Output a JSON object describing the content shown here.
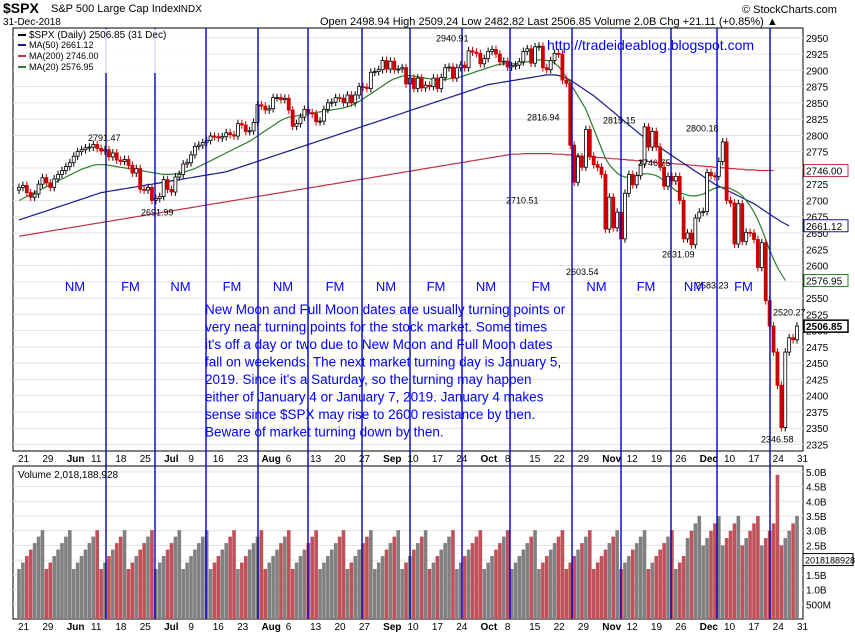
{
  "header": {
    "symbol": "$SPX",
    "name": "S&P 500 Large Cap Index",
    "exchange": "INDX",
    "date": "31-Dec-2018",
    "brand": "© StockCharts.com",
    "ohlc_line": "Open 2498.94  High 2509.24  Low 2482.82  Last 2506.85  Volume 2.0B  Chg +21.11 (+0.85%) ▲"
  },
  "legend": {
    "price": "$SPX (Daily) 2506.85 (31 Dec)",
    "ma50": "MA(50) 2661.12",
    "ma200": "MA(200) 2746.00",
    "ma20": "MA(20) 2576.95"
  },
  "blog_url": "http://tradeideablog.blogspot.com",
  "moon_labels": [
    "NM",
    "FM",
    "NM",
    "FM",
    "NM",
    "FM",
    "NM",
    "FM",
    "NM",
    "FM",
    "NM",
    "FM",
    "NM",
    "FM"
  ],
  "note_lines": [
    "New Moon and Full Moon dates are usually turning points or",
    "very near turning points for the stock market. Some times",
    "it's off a day or two due to New Moon and Full Moon dates",
    "fall on weekends. The next market turning day is January 5,",
    "2019. Since it's a Saturday, so the turning may happen",
    "either of January 4 or January 7, 2019. January 4 makes",
    "sense since $SPX may rise to 2600 resistance by then.",
    "Beware of market turning down by then."
  ],
  "volume_label": "Volume 2,018,188,928",
  "colors": {
    "up": "#000000",
    "down": "#cc0000",
    "volume_up": "#808080",
    "volume_down": "#c0505a",
    "ma20": "#2e7d2e",
    "ma50": "#1a1a8c",
    "ma200": "#c0304a",
    "moon_line": "#0000cc",
    "note_text": "#0000ff"
  },
  "chart_data": {
    "type": "candlestick",
    "price_ylim": [
      2315,
      2965
    ],
    "price_ticks": [
      2950,
      2925,
      2900,
      2875,
      2850,
      2825,
      2800,
      2775,
      2750,
      2725,
      2700,
      2675,
      2650,
      2625,
      2600,
      2575,
      2550,
      2525,
      2500,
      2475,
      2450,
      2425,
      2400,
      2375,
      2350,
      2325
    ],
    "x_ticks": [
      "21",
      "29",
      "Jun",
      "11",
      "18",
      "25",
      "Jul",
      "9",
      "16",
      "23",
      "Aug",
      "6",
      "13",
      "20",
      "27",
      "Sep",
      "10",
      "17",
      "24",
      "Oct",
      "8",
      "15",
      "22",
      "29",
      "Nov",
      "12",
      "19",
      "26",
      "Dec",
      "10",
      "17",
      "24",
      "31"
    ],
    "x_ticks_bold": [
      "Jun",
      "Jul",
      "Aug",
      "Sep",
      "Oct",
      "Nov",
      "Dec"
    ],
    "annotations": [
      {
        "label": "2791.47",
        "value": 2791.47
      },
      {
        "label": "2691.99",
        "value": 2691.99
      },
      {
        "label": "2940.91",
        "value": 2940.91
      },
      {
        "label": "2816.94",
        "value": 2816.94
      },
      {
        "label": "2710.51",
        "value": 2710.51
      },
      {
        "label": "2815.15",
        "value": 2815.15
      },
      {
        "label": "2746.75",
        "value": 2746.75
      },
      {
        "label": "2603.54",
        "value": 2603.54
      },
      {
        "label": "2631.09",
        "value": 2631.09
      },
      {
        "label": "2800.18",
        "value": 2800.18
      },
      {
        "label": "2583.23",
        "value": 2583.23
      },
      {
        "label": "2520.27",
        "value": 2520.27
      },
      {
        "label": "2346.58",
        "value": 2346.58
      }
    ],
    "right_tags": [
      {
        "label": "2746.00",
        "value": 2746.0,
        "series": "MA(200)"
      },
      {
        "label": "2661.12",
        "value": 2661.12,
        "series": "MA(50)"
      },
      {
        "label": "2576.95",
        "value": 2576.95,
        "series": "MA(20)"
      },
      {
        "label": "2506.85",
        "value": 2506.85,
        "series": "Last"
      }
    ],
    "close": [
      2720,
      2723,
      2712,
      2705,
      2710,
      2725,
      2735,
      2727,
      2720,
      2733,
      2740,
      2746,
      2752,
      2758,
      2768,
      2775,
      2778,
      2781,
      2782,
      2786,
      2780,
      2776,
      2778,
      2767,
      2773,
      2762,
      2760,
      2763,
      2754,
      2742,
      2749,
      2717,
      2716,
      2720,
      2700,
      2703,
      2706,
      2732,
      2717,
      2713,
      2736,
      2740,
      2756,
      2758,
      2770,
      2783,
      2785,
      2789,
      2792,
      2799,
      2798,
      2796,
      2798,
      2804,
      2801,
      2799,
      2818,
      2816,
      2806,
      2807,
      2820,
      2847,
      2845,
      2839,
      2841,
      2858,
      2858,
      2855,
      2857,
      2839,
      2814,
      2818,
      2828,
      2840,
      2835,
      2833,
      2821,
      2822,
      2840,
      2850,
      2851,
      2858,
      2857,
      2850,
      2862,
      2850,
      2862,
      2875,
      2874,
      2872,
      2897,
      2898,
      2901,
      2915,
      2902,
      2914,
      2901,
      2902,
      2904,
      2879,
      2888,
      2872,
      2888,
      2873,
      2877,
      2875,
      2888,
      2872,
      2889,
      2904,
      2905,
      2888,
      2904,
      2908,
      2904,
      2930,
      2928,
      2926,
      2910,
      2918,
      2929,
      2932,
      2925,
      2913,
      2914,
      2905,
      2907,
      2908,
      2913,
      2929,
      2933,
      2911,
      2936,
      2937,
      2904,
      2901,
      2915,
      2926,
      2925,
      2885,
      2880,
      2785,
      2728,
      2767,
      2751,
      2809,
      2768,
      2755,
      2751,
      2740,
      2656,
      2705,
      2658,
      2682,
      2641,
      2711,
      2740,
      2724,
      2738,
      2756,
      2813,
      2782,
      2806,
      2782,
      2751,
      2722,
      2737,
      2730,
      2737,
      2700,
      2641,
      2650,
      2632,
      2673,
      2682,
      2683,
      2743,
      2738,
      2737,
      2760,
      2790,
      2700,
      2696,
      2633,
      2695,
      2637,
      2651,
      2650,
      2640,
      2597,
      2635,
      2546,
      2507,
      2467,
      2416,
      2351,
      2467,
      2489,
      2486,
      2507
    ],
    "ma20": [
      2700,
      2703,
      2706,
      2709,
      2712,
      2715,
      2718,
      2721,
      2724,
      2727,
      2730,
      2733,
      2736,
      2739,
      2742,
      2745,
      2748,
      2750,
      2752,
      2754,
      2755,
      2755,
      2755,
      2754,
      2753,
      2752,
      2751,
      2750,
      2749,
      2748,
      2747,
      2746,
      2745,
      2744,
      2743,
      2742,
      2741,
      2740,
      2740,
      2740,
      2741,
      2742,
      2743,
      2745,
      2747,
      2749,
      2752,
      2755,
      2758,
      2761,
      2764,
      2767,
      2770,
      2773,
      2776,
      2779,
      2782,
      2785,
      2788,
      2791,
      2795,
      2799,
      2803,
      2807,
      2811,
      2815,
      2819,
      2823,
      2826,
      2828,
      2829,
      2830,
      2831,
      2832,
      2833,
      2834,
      2835,
      2836,
      2837,
      2838,
      2839,
      2840,
      2841,
      2842,
      2844,
      2846,
      2849,
      2852,
      2856,
      2860,
      2864,
      2868,
      2872,
      2876,
      2880,
      2884,
      2887,
      2889,
      2891,
      2892,
      2892,
      2891,
      2890,
      2889,
      2888,
      2887,
      2886,
      2885,
      2885,
      2886,
      2887,
      2888,
      2889,
      2890,
      2892,
      2894,
      2896,
      2898,
      2900,
      2902,
      2904,
      2906,
      2908,
      2909,
      2910,
      2910,
      2910,
      2910,
      2911,
      2912,
      2913,
      2914,
      2915,
      2916,
      2916,
      2915,
      2914,
      2911,
      2906,
      2898,
      2890,
      2880,
      2870,
      2860,
      2850,
      2840,
      2825,
      2810,
      2795,
      2780,
      2765,
      2755,
      2748,
      2742,
      2738,
      2736,
      2735,
      2736,
      2738,
      2740,
      2741,
      2741,
      2740,
      2738,
      2735,
      2730,
      2725,
      2720,
      2715,
      2712,
      2710,
      2708,
      2707,
      2707,
      2708,
      2710,
      2713,
      2716,
      2719,
      2720,
      2720,
      2720,
      2718,
      2715,
      2712,
      2707,
      2700,
      2692,
      2682,
      2670,
      2656,
      2640,
      2624,
      2610,
      2597,
      2587,
      2577
    ],
    "ma50": [
      2670,
      2672,
      2674,
      2676,
      2678,
      2680,
      2682,
      2684,
      2686,
      2688,
      2690,
      2692,
      2694,
      2696,
      2698,
      2700,
      2702,
      2704,
      2706,
      2708,
      2710,
      2712,
      2713,
      2714,
      2715,
      2716,
      2717,
      2718,
      2719,
      2720,
      2721,
      2722,
      2723,
      2724,
      2725,
      2726,
      2727,
      2728,
      2729,
      2730,
      2731,
      2732,
      2733,
      2734,
      2735,
      2736,
      2737,
      2738,
      2739,
      2740,
      2741,
      2742,
      2743,
      2744,
      2746,
      2748,
      2750,
      2752,
      2754,
      2756,
      2758,
      2760,
      2762,
      2764,
      2766,
      2768,
      2770,
      2772,
      2774,
      2776,
      2778,
      2780,
      2782,
      2784,
      2786,
      2788,
      2790,
      2792,
      2794,
      2796,
      2798,
      2800,
      2802,
      2804,
      2806,
      2808,
      2810,
      2812,
      2814,
      2816,
      2818,
      2820,
      2822,
      2824,
      2826,
      2828,
      2830,
      2832,
      2834,
      2836,
      2838,
      2840,
      2842,
      2844,
      2846,
      2848,
      2850,
      2852,
      2854,
      2856,
      2858,
      2860,
      2862,
      2864,
      2866,
      2868,
      2870,
      2872,
      2874,
      2876,
      2878,
      2879,
      2880,
      2881,
      2882,
      2883,
      2884,
      2885,
      2886,
      2887,
      2888,
      2889,
      2890,
      2891,
      2892,
      2893,
      2893,
      2893,
      2892,
      2890,
      2888,
      2885,
      2881,
      2877,
      2873,
      2869,
      2865,
      2861,
      2856,
      2851,
      2846,
      2841,
      2836,
      2831,
      2826,
      2821,
      2816,
      2811,
      2806,
      2801,
      2797,
      2793,
      2789,
      2785,
      2781,
      2777,
      2773,
      2769,
      2765,
      2761,
      2757,
      2753,
      2749,
      2745,
      2741,
      2737,
      2733,
      2729,
      2725,
      2722,
      2719,
      2716,
      2713,
      2710,
      2707,
      2704,
      2701,
      2698,
      2695,
      2691,
      2687,
      2683,
      2679,
      2675,
      2671,
      2667,
      2664,
      2661
    ],
    "ma200": [
      2645,
      2646,
      2647,
      2648,
      2649,
      2650,
      2651,
      2652,
      2653,
      2654,
      2655,
      2656,
      2657,
      2658,
      2659,
      2660,
      2661,
      2662,
      2663,
      2664,
      2665,
      2666,
      2667,
      2668,
      2669,
      2670,
      2671,
      2672,
      2673,
      2674,
      2675,
      2676,
      2677,
      2678,
      2679,
      2680,
      2681,
      2682,
      2683,
      2684,
      2685,
      2686,
      2687,
      2688,
      2689,
      2690,
      2691,
      2692,
      2693,
      2694,
      2695,
      2696,
      2697,
      2698,
      2699,
      2700,
      2701,
      2702,
      2703,
      2704,
      2705,
      2706,
      2707,
      2708,
      2709,
      2710,
      2711,
      2712,
      2713,
      2714,
      2715,
      2716,
      2717,
      2718,
      2719,
      2720,
      2721,
      2722,
      2723,
      2724,
      2725,
      2726,
      2727,
      2728,
      2729,
      2730,
      2731,
      2732,
      2733,
      2734,
      2735,
      2736,
      2737,
      2738,
      2739,
      2740,
      2741,
      2742,
      2743,
      2744,
      2745,
      2746,
      2747,
      2748,
      2749,
      2750,
      2751,
      2752,
      2753,
      2754,
      2755,
      2756,
      2757,
      2758,
      2759,
      2760,
      2761,
      2762,
      2763,
      2764,
      2765,
      2766,
      2767,
      2768,
      2769,
      2770,
      2771,
      2771,
      2771,
      2772,
      2772,
      2772,
      2772,
      2772,
      2772,
      2772,
      2772,
      2771,
      2771,
      2771,
      2770,
      2770,
      2769,
      2769,
      2768,
      2768,
      2767,
      2767,
      2766,
      2766,
      2765,
      2765,
      2764,
      2764,
      2763,
      2763,
      2762,
      2762,
      2761,
      2761,
      2760,
      2760,
      2759,
      2759,
      2758,
      2758,
      2757,
      2757,
      2756,
      2756,
      2755,
      2755,
      2754,
      2754,
      2753,
      2753,
      2752,
      2752,
      2751,
      2751,
      2750,
      2750,
      2749,
      2749,
      2748,
      2748,
      2747,
      2747,
      2747,
      2746,
      2746,
      2746,
      2746,
      2746
    ],
    "volume_ylim": [
      0,
      5.2
    ],
    "volume_ticks": [
      "5.0B",
      "4.5B",
      "4.0B",
      "3.5B",
      "3.0B",
      "2.5B",
      "2.0B",
      "1.5B",
      "1.0B",
      "500M"
    ],
    "volume_tag": "2018188928"
  }
}
